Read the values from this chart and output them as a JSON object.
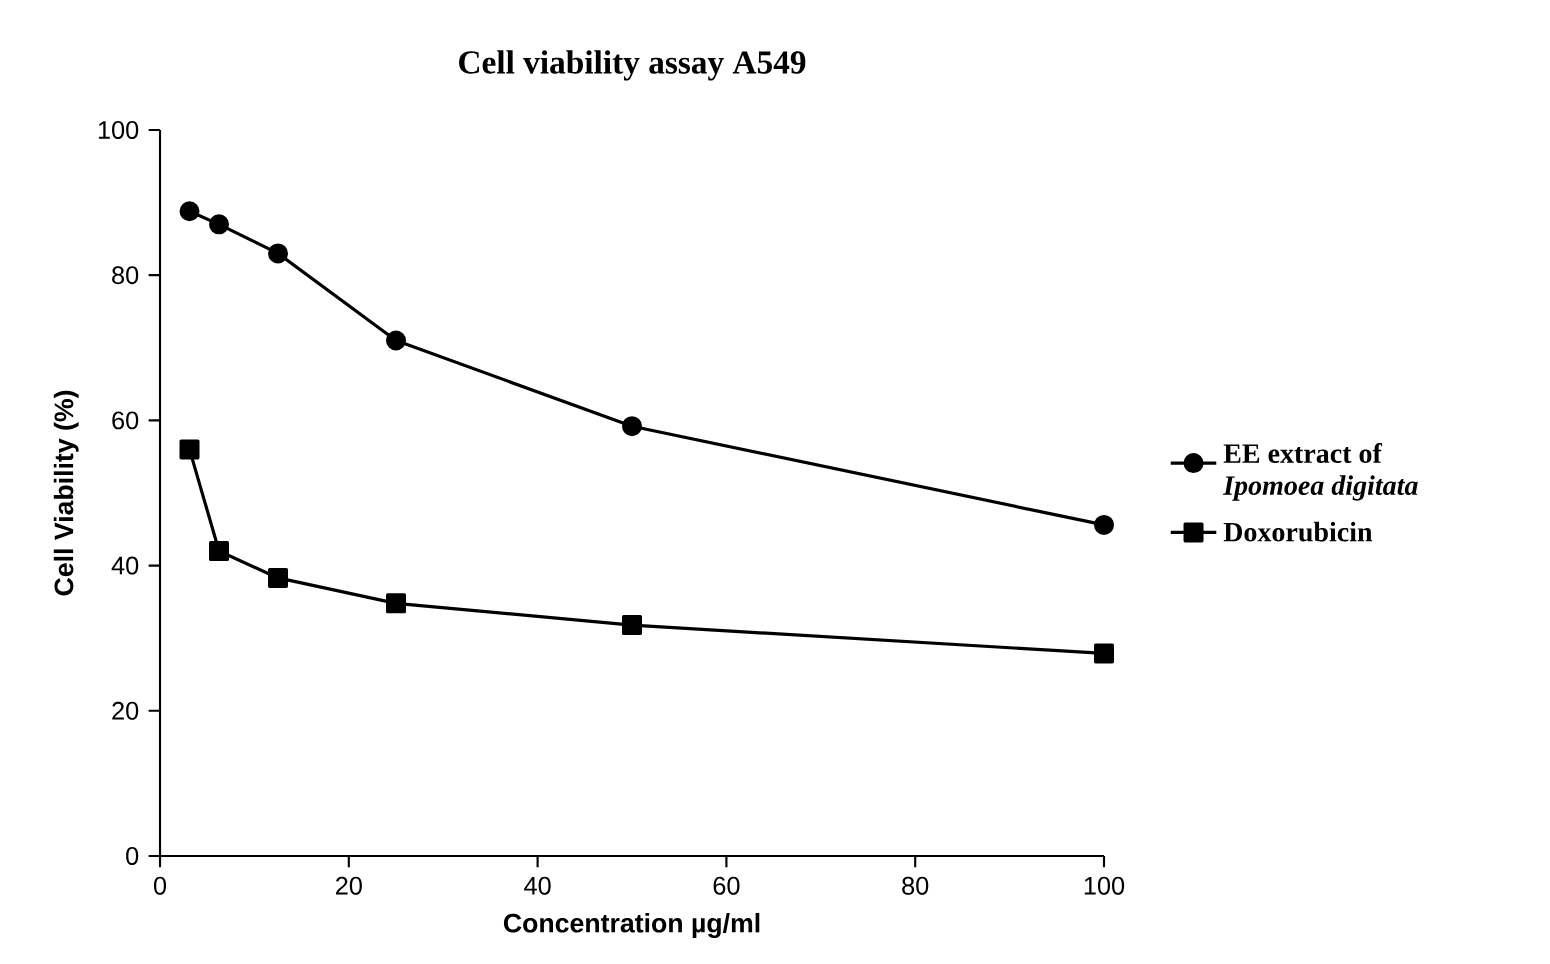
{
  "chart_data": {
    "type": "line",
    "title": "Cell viability assay A549",
    "xlabel": "Concentration µg/ml",
    "ylabel": "Cell  Viability (%)",
    "x": [
      3.125,
      6.25,
      12.5,
      25,
      50,
      100
    ],
    "series": [
      {
        "name": "EE extract of *Ipomoea digitata*",
        "color": "#000000",
        "marker": "circle",
        "values": [
          88.8,
          87,
          83,
          71,
          59.2,
          45.6
        ]
      },
      {
        "name": "Doxorubicin",
        "color": "#000000",
        "marker": "square",
        "values": [
          56,
          42,
          38.3,
          34.8,
          31.8,
          27.9
        ]
      }
    ],
    "xlim": [
      0,
      100
    ],
    "ylim": [
      0,
      100
    ],
    "xticks": [
      0,
      20,
      40,
      60,
      80,
      100
    ],
    "yticks": [
      0,
      20,
      40,
      60,
      80,
      100
    ],
    "grid": false,
    "legend": "right",
    "line_style": "solid"
  }
}
